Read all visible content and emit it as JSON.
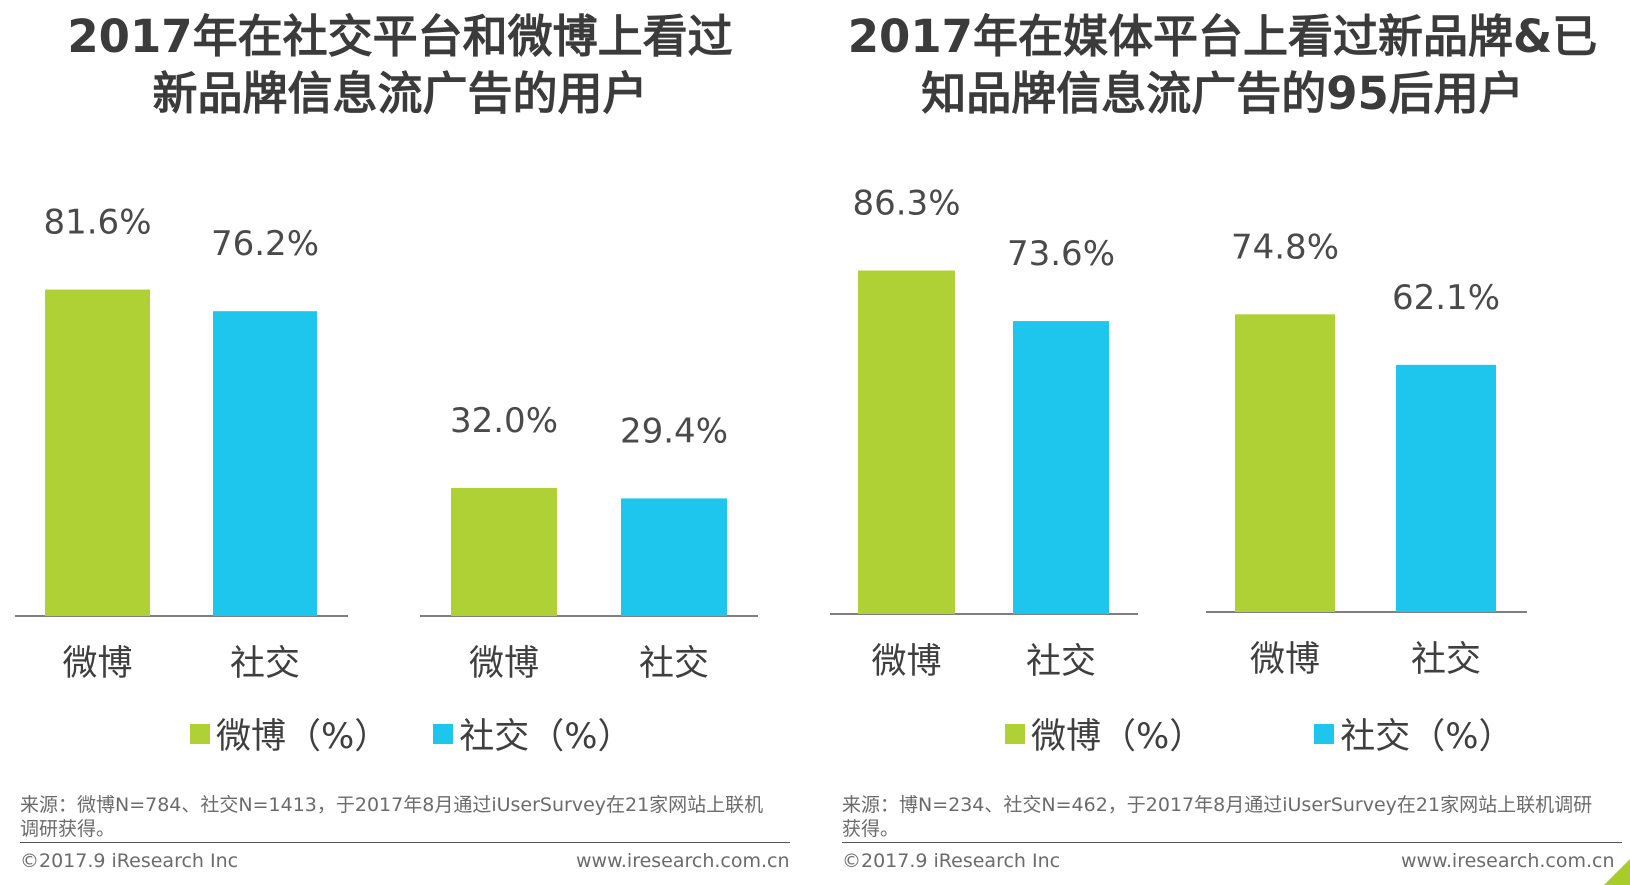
{
  "colors": {
    "weibo": "#b0d135",
    "social": "#1ec6ee",
    "axis": "#555555",
    "text": "#3a3a3a"
  },
  "left": {
    "title_line1": "2017年在社交平台和微博上看过",
    "title_line2": "新品牌信息流广告的用户",
    "legend_weibo": "微博（%）",
    "legend_social": "社交（%）",
    "source": "来源：微博N=784、社交N=1413，于2017年8月通过iUserSurvey在21家网站上联机调研获得。",
    "copyright": "©2017.9 iResearch Inc",
    "url": "www.iresearch.com.cn"
  },
  "right": {
    "title_line1": "2017年在媒体平台上看过新品牌&已",
    "title_line2": "知品牌信息流广告的95后用户",
    "legend_weibo": "微博（%）",
    "legend_social": "社交（%）",
    "source": "来源：博N=234、社交N=462，于2017年8月通过iUserSurvey在21家网站上联机调研获得。",
    "copyright": "©2017.9 iResearch Inc",
    "url": "www.iresearch.com.cn"
  },
  "chart_data": [
    {
      "type": "bar",
      "title": "2017年在社交平台和微博上看过新品牌信息流广告的用户",
      "ylim": [
        0,
        100
      ],
      "groups": [
        {
          "categories": [
            "微博",
            "社交"
          ],
          "values": [
            81.6,
            76.2
          ],
          "labels": [
            "81.6%",
            "76.2%"
          ]
        },
        {
          "categories": [
            "微博",
            "社交"
          ],
          "values": [
            32.0,
            29.4
          ],
          "labels": [
            "32.0%",
            "29.4%"
          ]
        }
      ],
      "series": [
        {
          "name": "微博（%）"
        },
        {
          "name": "社交（%）"
        }
      ],
      "legend": "bottom"
    },
    {
      "type": "bar",
      "title": "2017年在媒体平台上看过新品牌&已知品牌信息流广告的95后用户",
      "ylim": [
        0,
        100
      ],
      "groups": [
        {
          "categories": [
            "微博",
            "社交"
          ],
          "values": [
            86.3,
            73.6
          ],
          "labels": [
            "86.3%",
            "73.6%"
          ]
        },
        {
          "categories": [
            "微博",
            "社交"
          ],
          "values": [
            74.8,
            62.1
          ],
          "labels": [
            "74.8%",
            "62.1%"
          ]
        }
      ],
      "series": [
        {
          "name": "微博（%）"
        },
        {
          "name": "社交（%）"
        }
      ],
      "legend": "bottom"
    }
  ]
}
